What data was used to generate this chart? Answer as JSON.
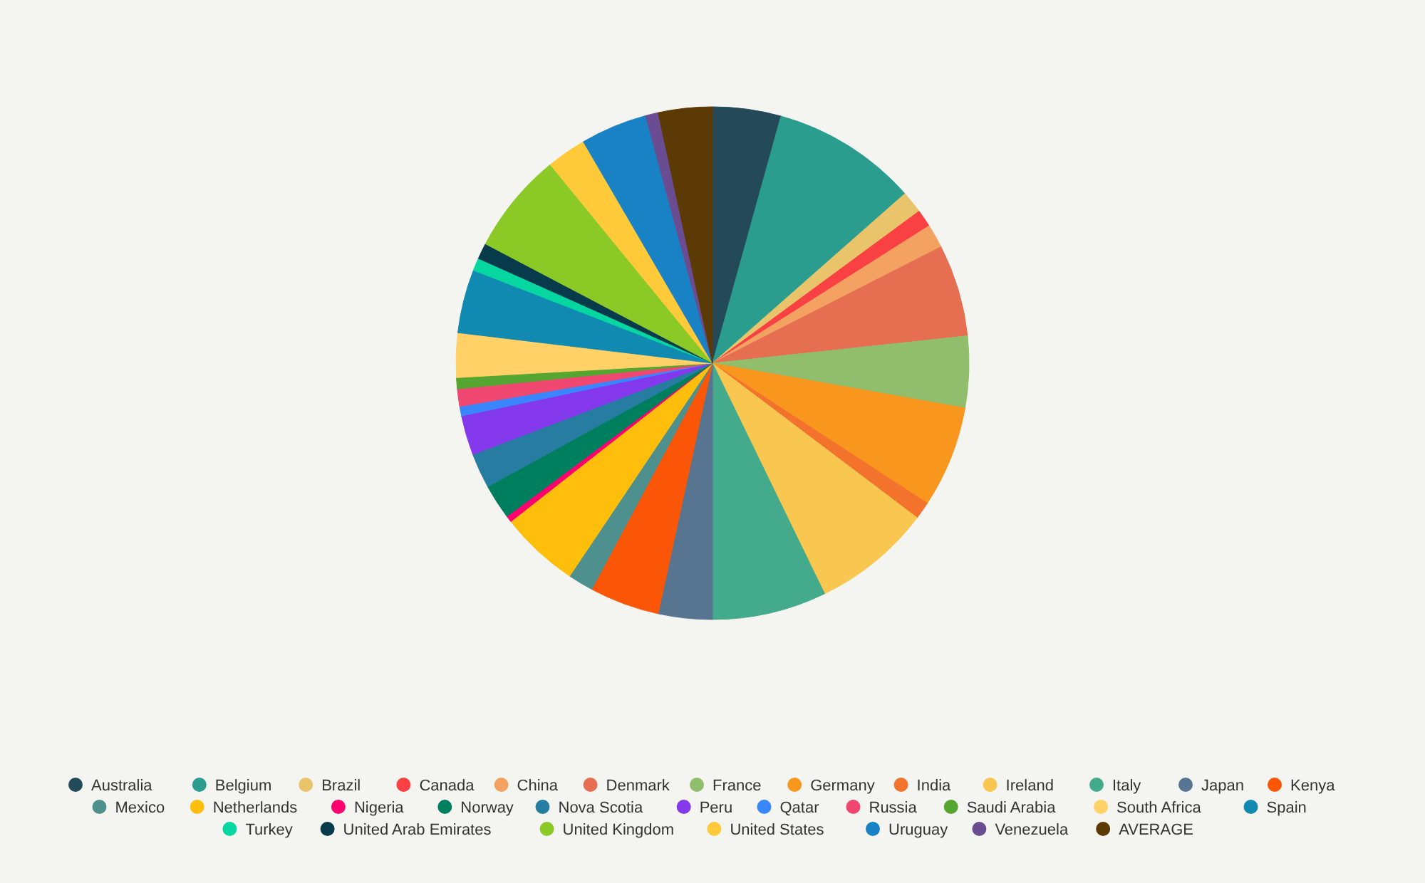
{
  "chart_data": {
    "type": "pie",
    "legend": "bottom",
    "categories": [
      "Australia",
      "Belgium",
      "Brazil",
      "Canada",
      "China",
      "Denmark",
      "France",
      "Germany",
      "India",
      "Ireland",
      "Italy",
      "Japan",
      "Kenya",
      "Mexico",
      "Netherlands",
      "Nigeria",
      "Norway",
      "Nova Scotia",
      "Peru",
      "Qatar",
      "Russia",
      "Saudi Arabia",
      "South Africa",
      "Spain",
      "Turkey",
      "United Arab Emirates",
      "United Kingdom",
      "United States",
      "Uruguay",
      "Venezuela",
      "AVERAGE"
    ],
    "values": [
      4.3,
      9.2,
      1.4,
      1.1,
      1.5,
      5.8,
      4.5,
      6.4,
      1.1,
      7.5,
      7.2,
      3.4,
      4.4,
      1.6,
      5.0,
      0.4,
      2.2,
      2.2,
      2.5,
      0.6,
      1.1,
      0.7,
      2.8,
      4.0,
      0.8,
      1.0,
      6.4,
      2.5,
      4.2,
      0.8,
      3.4
    ],
    "colors": [
      "#244a5a",
      "#2a9d8f",
      "#e9c46a",
      "#f94144",
      "#f4a261",
      "#e76f51",
      "#90be6d",
      "#f8961e",
      "#f3722c",
      "#f9c74f",
      "#43aa8b",
      "#577590",
      "#fb5607",
      "#4d908e",
      "#ffbe0b",
      "#ff006e",
      "#007f5f",
      "#277da1",
      "#8338ec",
      "#3a86ff",
      "#ef476f",
      "#55a630",
      "#ffd166",
      "#118ab2",
      "#06d6a0",
      "#073b4c",
      "#8ac926",
      "#ffca3a",
      "#1982c4",
      "#6a4c93",
      "#5c3a06"
    ]
  }
}
